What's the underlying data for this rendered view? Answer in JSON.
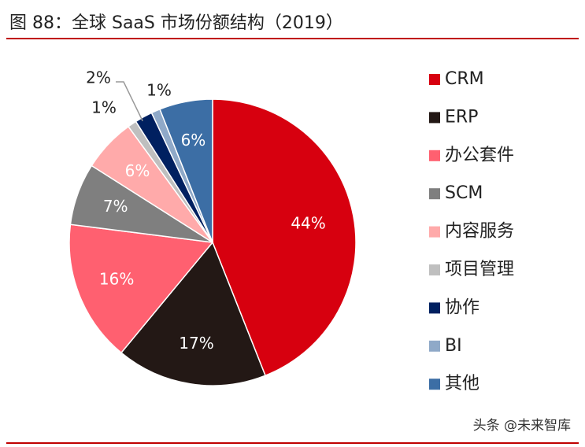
{
  "chart_data": {
    "type": "pie",
    "title": "图 88：全球 SaaS 市场份额结构（2019）",
    "source": "头条 @未来智库",
    "categories": [
      "CRM",
      "ERP",
      "办公套件",
      "SCM",
      "内容服务",
      "项目管理",
      "协作",
      "BI",
      "其他"
    ],
    "values": [
      44,
      17,
      16,
      7,
      6,
      1,
      2,
      1,
      6
    ],
    "value_labels": [
      "44%",
      "17%",
      "16%",
      "7%",
      "6%",
      "1%",
      "2%",
      "1%",
      "6%"
    ],
    "colors": [
      "#d7000f",
      "#231815",
      "#ff6070",
      "#7f7f7f",
      "#ffaaaa",
      "#bfbfbf",
      "#002060",
      "#8fa9c8",
      "#3c6ea5"
    ],
    "legend": "right"
  }
}
